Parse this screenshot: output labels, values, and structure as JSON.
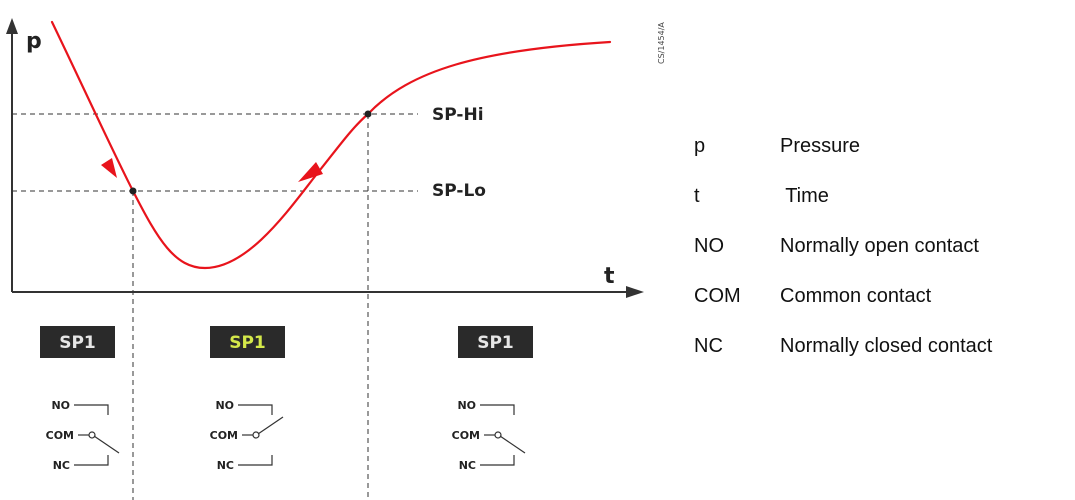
{
  "axes": {
    "y_label": "p",
    "x_label": "t"
  },
  "setpoints": {
    "high": "SP-Hi",
    "low": "SP-Lo"
  },
  "doc_code": "CS/1454/A",
  "states": [
    {
      "display": "SP1",
      "display_color": "#e6e6e6",
      "contact": "com-to-nc"
    },
    {
      "display": "SP1",
      "display_color": "#d4e84a",
      "contact": "com-to-no"
    },
    {
      "display": "SP1",
      "display_color": "#e6e6e6",
      "contact": "com-to-nc"
    }
  ],
  "contacts": {
    "no": "NO",
    "com": "COM",
    "nc": "NC"
  },
  "colors": {
    "curve": "#e8141c",
    "display_bg": "#2a2a2a"
  },
  "legend": [
    {
      "key": "p",
      "desc": "Pressure"
    },
    {
      "key": "t",
      "desc": " Time"
    },
    {
      "key": "NO",
      "desc": "Normally open contact"
    },
    {
      "key": "COM",
      "desc": "Common contact"
    },
    {
      "key": "NC",
      "desc": "Normally closed contact"
    }
  ]
}
